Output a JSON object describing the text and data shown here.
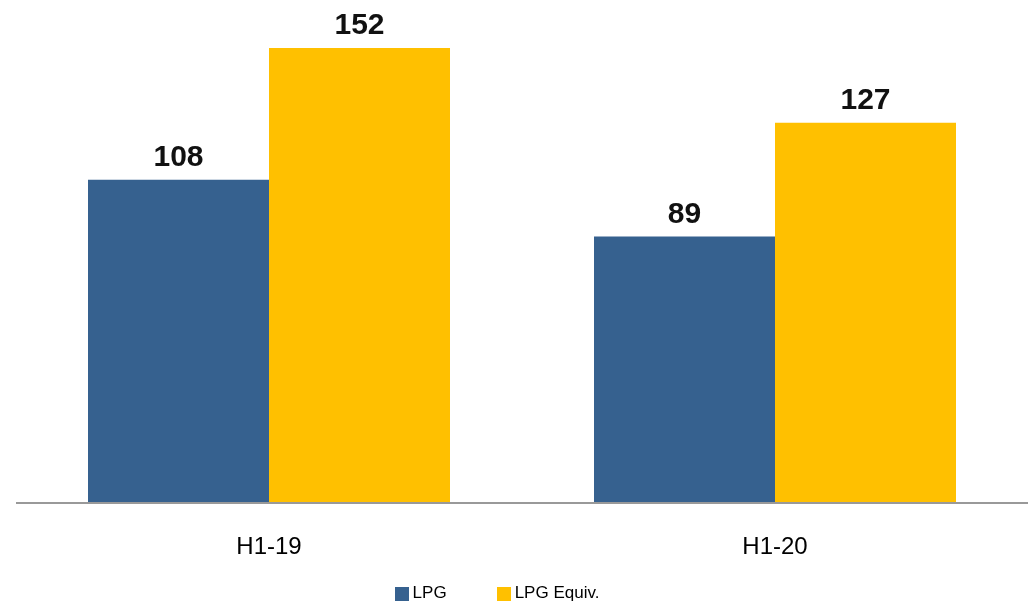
{
  "chart_data": {
    "type": "bar",
    "categories": [
      "H1-19",
      "H1-20"
    ],
    "series": [
      {
        "name": "LPG",
        "color": "#36618f",
        "values": [
          108,
          89
        ]
      },
      {
        "name": "LPG Equiv.",
        "color": "#ffc000",
        "values": [
          152,
          127
        ]
      }
    ],
    "data_labels": true,
    "legend": "bottom",
    "grid": false
  }
}
